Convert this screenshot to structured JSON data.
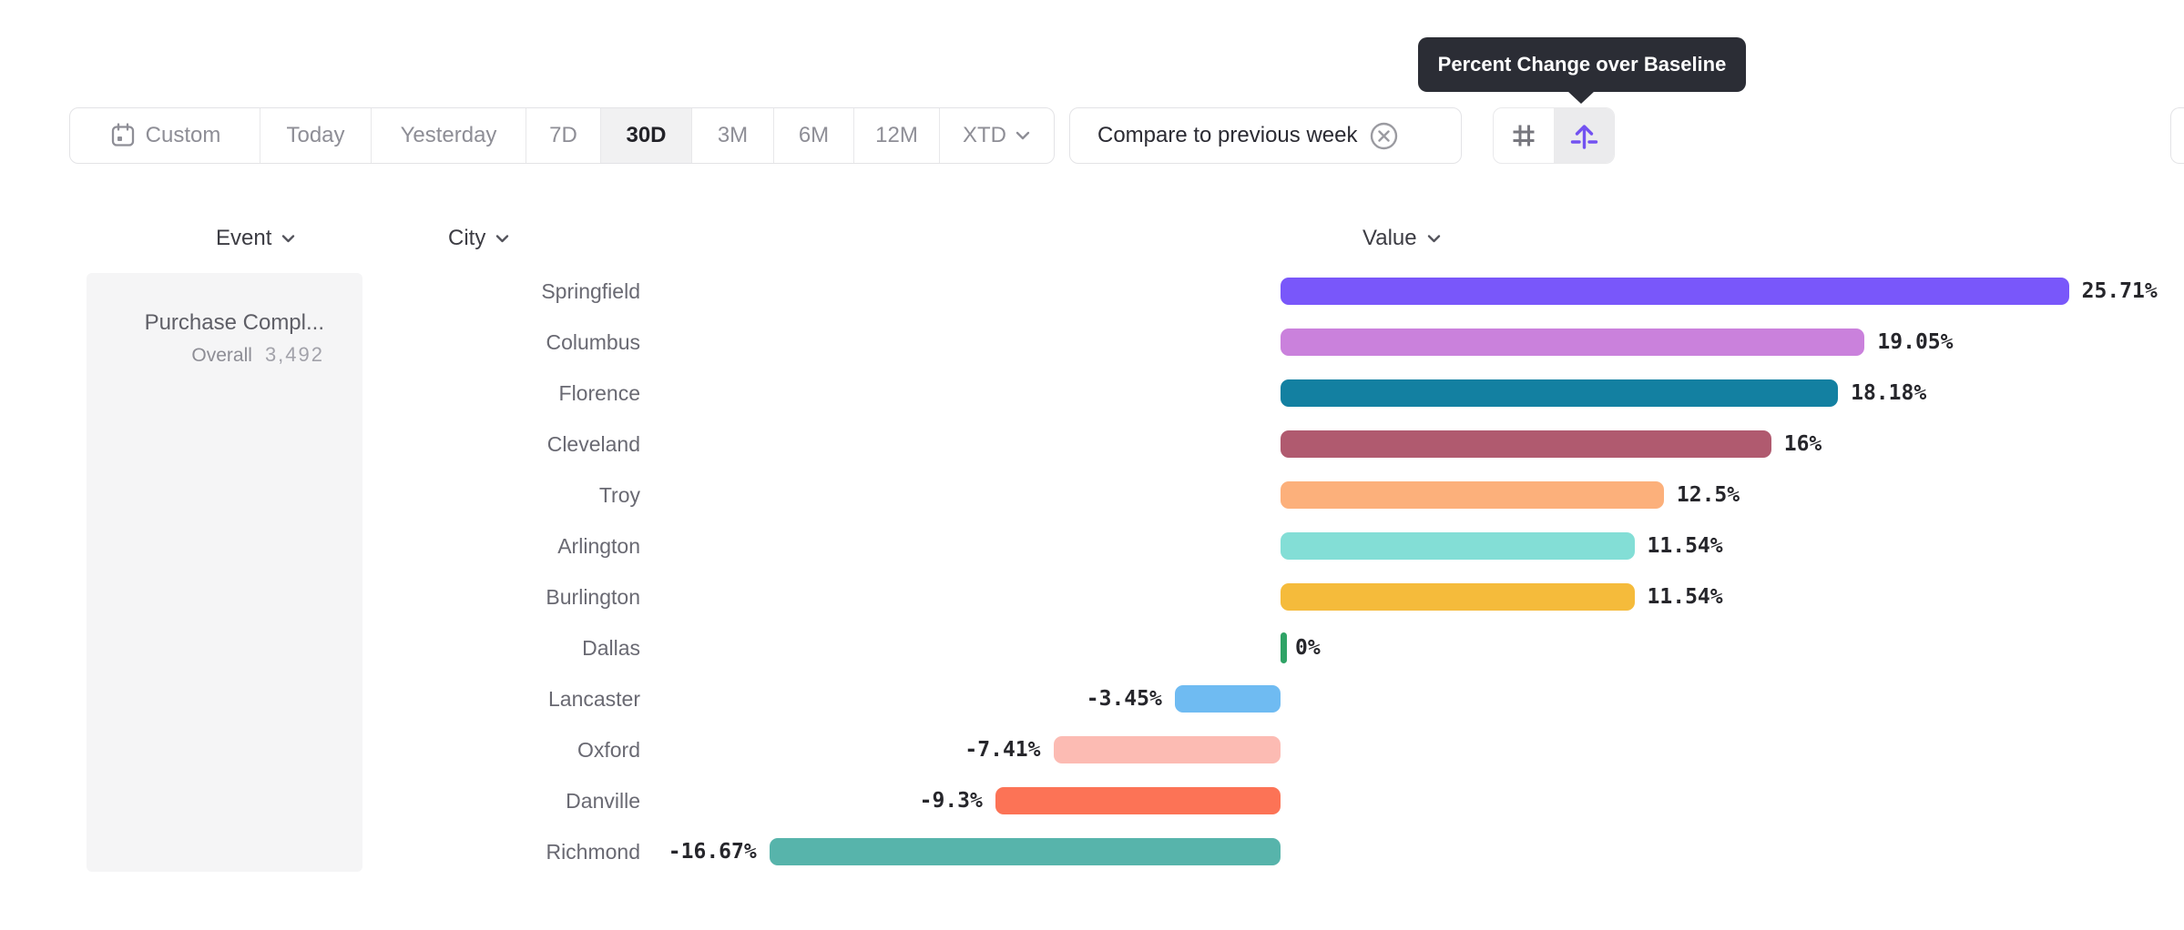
{
  "tooltip": {
    "text": "Percent Change over Baseline"
  },
  "toolbar": {
    "date_ranges": [
      {
        "label": "Custom",
        "icon": "calendar-icon",
        "selected": false
      },
      {
        "label": "Today",
        "selected": false
      },
      {
        "label": "Yesterday",
        "selected": false
      },
      {
        "label": "7D",
        "selected": false
      },
      {
        "label": "30D",
        "selected": true
      },
      {
        "label": "3M",
        "selected": false
      },
      {
        "label": "6M",
        "selected": false
      },
      {
        "label": "12M",
        "selected": false
      },
      {
        "label": "XTD",
        "icon": "chevron-down-icon",
        "selected": false
      }
    ],
    "compare_button": {
      "label": "Compare to previous week",
      "dismiss_icon": "circle-x-icon"
    },
    "view_toggle": {
      "options": [
        {
          "icon": "grid-hash-icon",
          "selected": false
        },
        {
          "icon": "flip-axis-arrow-icon",
          "selected": true,
          "accent_color": "#7352f1"
        }
      ]
    }
  },
  "table_headers": {
    "event": "Event",
    "city": "City",
    "value": "Value"
  },
  "event_panel": {
    "title": "Purchase Compl...",
    "overall_label": "Overall",
    "overall_value": "3,492"
  },
  "chart_data": {
    "type": "bar",
    "orientation": "horizontal",
    "title": "Percent Change over Baseline",
    "categories": [
      "Springfield",
      "Columbus",
      "Florence",
      "Cleveland",
      "Troy",
      "Arlington",
      "Burlington",
      "Dallas",
      "Lancaster",
      "Oxford",
      "Danville",
      "Richmond"
    ],
    "values": [
      25.71,
      19.05,
      18.18,
      16,
      12.5,
      11.54,
      11.54,
      0,
      -3.45,
      -7.41,
      -9.3,
      -16.67
    ],
    "value_labels": [
      "25.71%",
      "19.05%",
      "18.18%",
      "16%",
      "12.5%",
      "11.54%",
      "11.54%",
      "0%",
      "-3.45%",
      "-7.41%",
      "-9.3%",
      "-16.67%"
    ],
    "colors": [
      "#7957FA",
      "#CA81DC",
      "#1380A1",
      "#B05A6F",
      "#FCB07B",
      "#83DED6",
      "#F5BB3B",
      "#2FA366",
      "#6FBBF2",
      "#FCBBB3",
      "#FC7356",
      "#57B4AB"
    ],
    "xlim": [
      -16.67,
      25.71
    ],
    "zero_baseline_color": "#2FA366",
    "grid": false,
    "legend": false
  }
}
